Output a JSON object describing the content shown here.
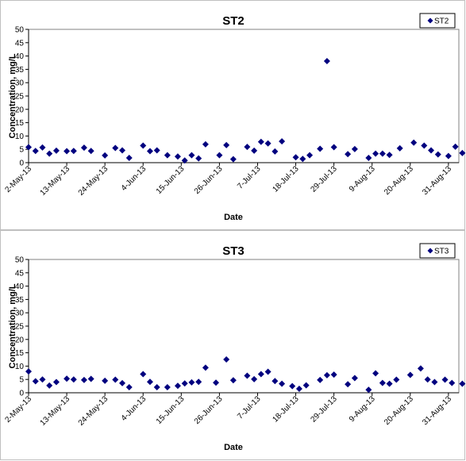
{
  "chart_data": [
    {
      "type": "scatter",
      "title": "ST2",
      "xlabel": "Date",
      "ylabel": "Concentration, mg/L",
      "legend": "ST2",
      "legend_position": "top-right",
      "ylim": [
        0,
        50
      ],
      "yticks": [
        0,
        5,
        10,
        15,
        20,
        25,
        30,
        35,
        40,
        45,
        50
      ],
      "xlim": [
        "2013-05-02",
        "2013-09-03"
      ],
      "x_tick_labels": [
        "2-May-13",
        "13-May-13",
        "24-May-13",
        "4-Jun-13",
        "15-Jun-13",
        "26-Jun-13",
        "7-Jul-13",
        "18-Jul-13",
        "29-Jul-13",
        "9-Aug-13",
        "20-Aug-13",
        "31-Aug-13"
      ],
      "x_ticks": [
        "2013-05-02",
        "2013-05-13",
        "2013-05-24",
        "2013-06-04",
        "2013-06-15",
        "2013-06-26",
        "2013-07-07",
        "2013-07-18",
        "2013-07-29",
        "2013-08-09",
        "2013-08-20",
        "2013-08-31"
      ],
      "marker_color": "#00007f",
      "points": [
        {
          "x": "2013-05-02",
          "y": 5.8
        },
        {
          "x": "2013-05-04",
          "y": 4.4
        },
        {
          "x": "2013-05-06",
          "y": 5.7
        },
        {
          "x": "2013-05-08",
          "y": 3.4
        },
        {
          "x": "2013-05-10",
          "y": 4.5
        },
        {
          "x": "2013-05-13",
          "y": 4.3
        },
        {
          "x": "2013-05-15",
          "y": 4.4
        },
        {
          "x": "2013-05-18",
          "y": 5.6
        },
        {
          "x": "2013-05-20",
          "y": 4.4
        },
        {
          "x": "2013-05-24",
          "y": 2.7
        },
        {
          "x": "2013-05-27",
          "y": 5.5
        },
        {
          "x": "2013-05-29",
          "y": 4.6
        },
        {
          "x": "2013-05-31",
          "y": 1.8
        },
        {
          "x": "2013-06-04",
          "y": 6.4
        },
        {
          "x": "2013-06-06",
          "y": 4.3
        },
        {
          "x": "2013-06-08",
          "y": 4.6
        },
        {
          "x": "2013-06-11",
          "y": 2.8
        },
        {
          "x": "2013-06-14",
          "y": 2.3
        },
        {
          "x": "2013-06-16",
          "y": 0.8
        },
        {
          "x": "2013-06-18",
          "y": 2.8
        },
        {
          "x": "2013-06-20",
          "y": 1.6
        },
        {
          "x": "2013-06-22",
          "y": 6.9
        },
        {
          "x": "2013-06-26",
          "y": 2.8
        },
        {
          "x": "2013-06-28",
          "y": 6.6
        },
        {
          "x": "2013-06-30",
          "y": 1.3
        },
        {
          "x": "2013-07-04",
          "y": 5.9
        },
        {
          "x": "2013-07-06",
          "y": 4.5
        },
        {
          "x": "2013-07-08",
          "y": 7.8
        },
        {
          "x": "2013-07-10",
          "y": 7.2
        },
        {
          "x": "2013-07-12",
          "y": 4.2
        },
        {
          "x": "2013-07-14",
          "y": 8.0
        },
        {
          "x": "2013-07-18",
          "y": 2.0
        },
        {
          "x": "2013-07-20",
          "y": 1.4
        },
        {
          "x": "2013-07-22",
          "y": 2.8
        },
        {
          "x": "2013-07-25",
          "y": 5.2
        },
        {
          "x": "2013-07-27",
          "y": 38.1
        },
        {
          "x": "2013-07-29",
          "y": 5.8
        },
        {
          "x": "2013-08-02",
          "y": 3.2
        },
        {
          "x": "2013-08-04",
          "y": 5.1
        },
        {
          "x": "2013-08-08",
          "y": 1.8
        },
        {
          "x": "2013-08-10",
          "y": 3.4
        },
        {
          "x": "2013-08-12",
          "y": 3.4
        },
        {
          "x": "2013-08-14",
          "y": 2.9
        },
        {
          "x": "2013-08-17",
          "y": 5.4
        },
        {
          "x": "2013-08-21",
          "y": 7.5
        },
        {
          "x": "2013-08-24",
          "y": 6.4
        },
        {
          "x": "2013-08-26",
          "y": 4.6
        },
        {
          "x": "2013-08-28",
          "y": 3.1
        },
        {
          "x": "2013-08-31",
          "y": 2.5
        },
        {
          "x": "2013-09-02",
          "y": 6.0
        },
        {
          "x": "2013-09-04",
          "y": 3.6
        }
      ]
    },
    {
      "type": "scatter",
      "title": "ST3",
      "xlabel": "Date",
      "ylabel": "Concentration, mg/L",
      "legend": "ST3",
      "legend_position": "top-right",
      "ylim": [
        0,
        50
      ],
      "yticks": [
        0,
        5,
        10,
        15,
        20,
        25,
        30,
        35,
        40,
        45,
        50
      ],
      "xlim": [
        "2013-05-02",
        "2013-09-03"
      ],
      "x_tick_labels": [
        "2-May-13",
        "13-May-13",
        "24-May-13",
        "4-Jun-13",
        "15-Jun-13",
        "26-Jun-13",
        "7-Jul-13",
        "18-Jul-13",
        "29-Jul-13",
        "9-Aug-13",
        "20-Aug-13",
        "31-Aug-13"
      ],
      "x_ticks": [
        "2013-05-02",
        "2013-05-13",
        "2013-05-24",
        "2013-06-04",
        "2013-06-15",
        "2013-06-26",
        "2013-07-07",
        "2013-07-18",
        "2013-07-29",
        "2013-08-09",
        "2013-08-20",
        "2013-08-31"
      ],
      "marker_color": "#00007f",
      "points": [
        {
          "x": "2013-05-02",
          "y": 8.0
        },
        {
          "x": "2013-05-04",
          "y": 4.3
        },
        {
          "x": "2013-05-06",
          "y": 5.0
        },
        {
          "x": "2013-05-08",
          "y": 2.7
        },
        {
          "x": "2013-05-10",
          "y": 4.0
        },
        {
          "x": "2013-05-13",
          "y": 5.3
        },
        {
          "x": "2013-05-15",
          "y": 5.0
        },
        {
          "x": "2013-05-18",
          "y": 4.8
        },
        {
          "x": "2013-05-20",
          "y": 5.2
        },
        {
          "x": "2013-05-24",
          "y": 4.5
        },
        {
          "x": "2013-05-27",
          "y": 4.9
        },
        {
          "x": "2013-05-29",
          "y": 3.6
        },
        {
          "x": "2013-05-31",
          "y": 2.1
        },
        {
          "x": "2013-06-04",
          "y": 7.0
        },
        {
          "x": "2013-06-06",
          "y": 4.1
        },
        {
          "x": "2013-06-08",
          "y": 2.1
        },
        {
          "x": "2013-06-11",
          "y": 2.1
        },
        {
          "x": "2013-06-14",
          "y": 2.6
        },
        {
          "x": "2013-06-16",
          "y": 3.5
        },
        {
          "x": "2013-06-18",
          "y": 3.9
        },
        {
          "x": "2013-06-20",
          "y": 4.1
        },
        {
          "x": "2013-06-22",
          "y": 9.4
        },
        {
          "x": "2013-06-25",
          "y": 3.8
        },
        {
          "x": "2013-06-28",
          "y": 12.5
        },
        {
          "x": "2013-06-30",
          "y": 4.7
        },
        {
          "x": "2013-07-04",
          "y": 6.4
        },
        {
          "x": "2013-07-06",
          "y": 5.1
        },
        {
          "x": "2013-07-08",
          "y": 7.0
        },
        {
          "x": "2013-07-10",
          "y": 7.9
        },
        {
          "x": "2013-07-12",
          "y": 4.4
        },
        {
          "x": "2013-07-14",
          "y": 3.4
        },
        {
          "x": "2013-07-17",
          "y": 2.5
        },
        {
          "x": "2013-07-19",
          "y": 1.5
        },
        {
          "x": "2013-07-21",
          "y": 2.8
        },
        {
          "x": "2013-07-25",
          "y": 4.8
        },
        {
          "x": "2013-07-27",
          "y": 6.6
        },
        {
          "x": "2013-07-29",
          "y": 6.8
        },
        {
          "x": "2013-08-02",
          "y": 3.2
        },
        {
          "x": "2013-08-04",
          "y": 5.5
        },
        {
          "x": "2013-08-08",
          "y": 1.1
        },
        {
          "x": "2013-08-10",
          "y": 7.3
        },
        {
          "x": "2013-08-12",
          "y": 3.7
        },
        {
          "x": "2013-08-14",
          "y": 3.4
        },
        {
          "x": "2013-08-16",
          "y": 4.9
        },
        {
          "x": "2013-08-20",
          "y": 6.7
        },
        {
          "x": "2013-08-23",
          "y": 9.1
        },
        {
          "x": "2013-08-25",
          "y": 5.0
        },
        {
          "x": "2013-08-27",
          "y": 4.0
        },
        {
          "x": "2013-08-30",
          "y": 4.9
        },
        {
          "x": "2013-09-01",
          "y": 3.7
        },
        {
          "x": "2013-09-04",
          "y": 3.4
        }
      ]
    }
  ]
}
